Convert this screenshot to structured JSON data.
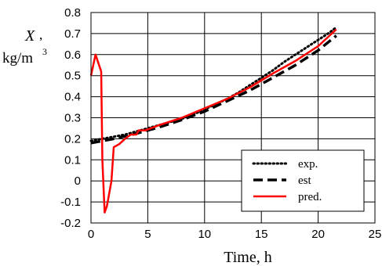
{
  "chart_data": {
    "type": "line",
    "xlabel": "Time, h",
    "ylabel": {
      "symbol": "X",
      "sep": ",",
      "unit": "kg/m",
      "exponent": "3"
    },
    "xlim": [
      0,
      25
    ],
    "ylim": [
      -0.2,
      0.8
    ],
    "xticks": [
      0,
      5,
      10,
      15,
      20,
      25
    ],
    "xtick_labels": [
      "0",
      "5",
      "10",
      "15",
      "20",
      "25"
    ],
    "yticks": [
      -0.2,
      -0.1,
      0,
      0.1,
      0.2,
      0.3,
      0.4,
      0.5,
      0.6,
      0.7,
      0.8
    ],
    "ytick_labels": [
      "-0.2",
      "-0.1",
      "0",
      "0.1",
      "0.2",
      "0.3",
      "0.4",
      "0.5",
      "0.6",
      "0.7",
      "0.8"
    ],
    "grid": true,
    "legend_position": "bottom-right",
    "series": [
      {
        "name": "exp.",
        "style": "dotted",
        "color": "#000000",
        "x": [
          0,
          1,
          2,
          3,
          4,
          5,
          6,
          7,
          8,
          9,
          10,
          11,
          12,
          13,
          14,
          15,
          16,
          17,
          18,
          19,
          20,
          21,
          21.6
        ],
        "y": [
          0.19,
          0.2,
          0.21,
          0.22,
          0.235,
          0.25,
          0.265,
          0.28,
          0.295,
          0.315,
          0.34,
          0.365,
          0.39,
          0.42,
          0.455,
          0.49,
          0.525,
          0.565,
          0.6,
          0.635,
          0.67,
          0.705,
          0.73
        ]
      },
      {
        "name": "est",
        "style": "dashed",
        "color": "#000000",
        "x": [
          0,
          2,
          4,
          6,
          8,
          10,
          12,
          14,
          16,
          18,
          20,
          21.6
        ],
        "y": [
          0.18,
          0.2,
          0.225,
          0.255,
          0.29,
          0.33,
          0.38,
          0.43,
          0.49,
          0.55,
          0.62,
          0.69
        ]
      },
      {
        "name": "pred.",
        "style": "solid",
        "color": "#ff0000",
        "x": [
          0,
          0.4,
          0.9,
          1.0,
          1.2,
          1.4,
          1.8,
          2.0,
          2.5,
          3.0,
          3.5,
          4.0,
          4.2,
          4.8,
          6,
          8,
          10,
          12,
          14,
          16,
          18,
          20,
          21.6
        ],
        "y": [
          0.5,
          0.6,
          0.52,
          0.1,
          -0.15,
          -0.12,
          0.0,
          0.16,
          0.175,
          0.2,
          0.22,
          0.22,
          0.24,
          0.24,
          0.265,
          0.3,
          0.345,
          0.39,
          0.445,
          0.51,
          0.57,
          0.64,
          0.72
        ]
      }
    ]
  }
}
